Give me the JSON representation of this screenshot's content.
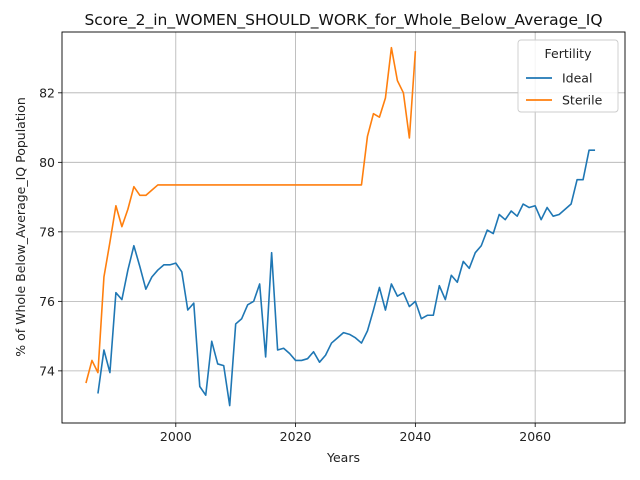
{
  "chart_data": {
    "type": "line",
    "title": "Score_2_in_WOMEN_SHOULD_WORK_for_Whole_Below_Average_IQ",
    "xlabel": "Years",
    "ylabel": "% of Whole Below_Average_IQ Population",
    "xlim": [
      1981,
      2075
    ],
    "ylim": [
      72.5,
      83.75
    ],
    "xticks": [
      2000,
      2020,
      2040,
      2060
    ],
    "yticks": [
      74,
      76,
      78,
      80,
      82
    ],
    "grid": true,
    "legend": {
      "title": "Fertility",
      "placement": "top-right"
    },
    "series": [
      {
        "name": "Ideal",
        "color": "#1f77b4",
        "x": [
          1987,
          1988,
          1989,
          1990,
          1991,
          1992,
          1993,
          1994,
          1995,
          1996,
          1997,
          1998,
          1999,
          2000,
          2001,
          2002,
          2003,
          2004,
          2005,
          2006,
          2007,
          2008,
          2009,
          2010,
          2011,
          2012,
          2013,
          2014,
          2015,
          2016,
          2017,
          2018,
          2019,
          2020,
          2021,
          2022,
          2023,
          2024,
          2025,
          2026,
          2027,
          2028,
          2029,
          2030,
          2031,
          2032,
          2033,
          2034,
          2035,
          2036,
          2037,
          2038,
          2039,
          2040,
          2041,
          2042,
          2043,
          2044,
          2045,
          2046,
          2047,
          2048,
          2049,
          2050,
          2051,
          2052,
          2053,
          2054,
          2055,
          2056,
          2057,
          2058,
          2059,
          2060,
          2061,
          2062,
          2063,
          2064,
          2065,
          2066,
          2067,
          2068,
          2069,
          2070
        ],
        "y": [
          73.35,
          74.6,
          73.95,
          76.25,
          76.05,
          76.9,
          77.6,
          77.0,
          76.35,
          76.7,
          76.9,
          77.05,
          77.05,
          77.1,
          76.85,
          75.75,
          75.95,
          73.55,
          73.3,
          74.85,
          74.2,
          74.15,
          73.0,
          75.35,
          75.5,
          75.9,
          76.0,
          76.5,
          74.4,
          77.4,
          74.6,
          74.65,
          74.5,
          74.3,
          74.3,
          74.35,
          74.55,
          74.25,
          74.45,
          74.8,
          74.95,
          75.1,
          75.05,
          74.95,
          74.8,
          75.15,
          75.75,
          76.4,
          75.75,
          76.5,
          76.15,
          76.25,
          75.85,
          76.0,
          75.5,
          75.6,
          75.6,
          76.45,
          76.05,
          76.75,
          76.55,
          77.15,
          76.95,
          77.4,
          77.6,
          78.05,
          77.95,
          78.5,
          78.35,
          78.6,
          78.45,
          78.8,
          78.7,
          78.75,
          78.35,
          78.7,
          78.45,
          78.5,
          78.65,
          78.8,
          79.5,
          79.5,
          80.35,
          80.35
        ]
      },
      {
        "name": "Sterile",
        "color": "#ff7f0e",
        "x": [
          1985,
          1986,
          1987,
          1988,
          1989,
          1990,
          1991,
          1992,
          1993,
          1994,
          1995,
          1996,
          1997,
          1998,
          1999,
          2000,
          2005,
          2010,
          2015,
          2020,
          2025,
          2030,
          2031,
          2032,
          2033,
          2034,
          2035,
          2036,
          2037,
          2038,
          2039,
          2040
        ],
        "y": [
          73.65,
          74.3,
          73.95,
          76.7,
          77.7,
          78.75,
          78.15,
          78.65,
          79.3,
          79.05,
          79.05,
          79.2,
          79.35,
          79.35,
          79.35,
          79.35,
          79.35,
          79.35,
          79.35,
          79.35,
          79.35,
          79.35,
          79.35,
          80.75,
          81.4,
          81.3,
          81.85,
          83.3,
          82.35,
          82.0,
          80.7,
          83.2
        ]
      }
    ]
  }
}
